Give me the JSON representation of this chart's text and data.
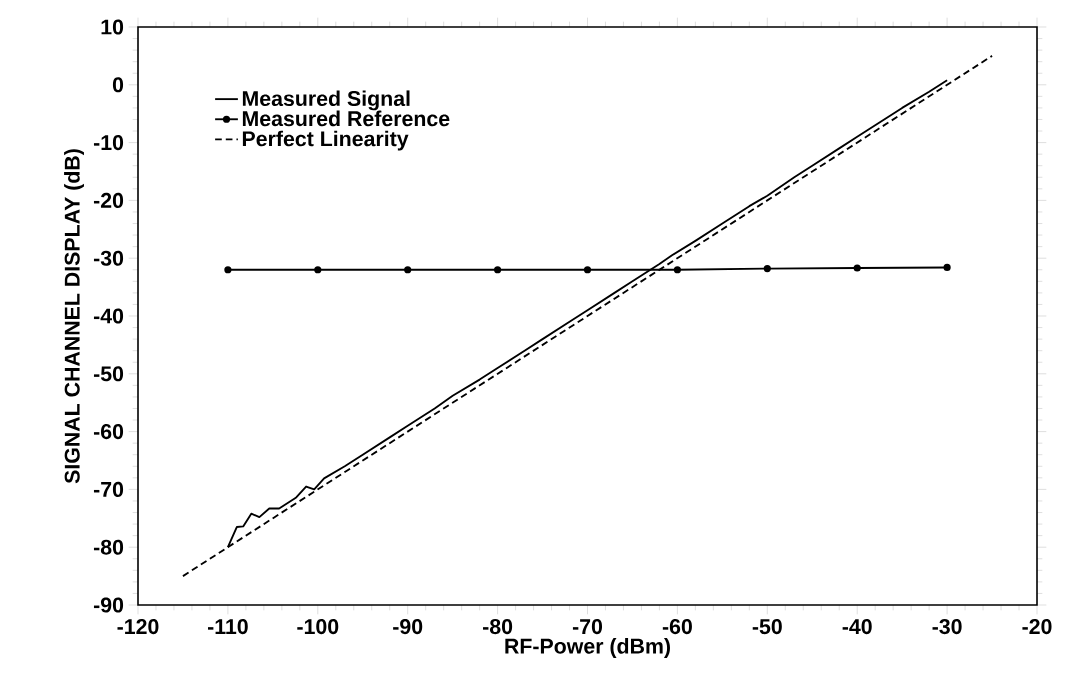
{
  "chart_data": {
    "type": "line",
    "xlabel": "RF-Power (dBm)",
    "ylabel": "SIGNAL CHANNEL DISPLAY (dB)",
    "xlim": [
      -120,
      -20
    ],
    "ylim": [
      -90,
      10
    ],
    "xticks": [
      -120,
      -110,
      -100,
      -90,
      -80,
      -70,
      -60,
      -50,
      -40,
      -30,
      -20
    ],
    "yticks": [
      -90,
      -80,
      -70,
      -60,
      -50,
      -40,
      -30,
      -20,
      -10,
      0,
      10
    ],
    "grid": false,
    "legend": "top left",
    "series": [
      {
        "name": "Measured Signal",
        "color": "#000000",
        "marker": "none",
        "line_style": "solid",
        "x": [
          -110,
          -109,
          -108.3,
          -107.4,
          -106.5,
          -105.4,
          -104.3,
          -102.4,
          -101.3,
          -100.4,
          -99.3,
          -97,
          -95,
          -92,
          -90,
          -87,
          -85,
          -82,
          -80,
          -77,
          -75,
          -72,
          -70,
          -67,
          -65,
          -62,
          -60.6,
          -58,
          -55,
          -52,
          -50,
          -47,
          -45,
          -42,
          -40,
          -37,
          -35,
          -32,
          -30
        ],
        "values": [
          -80,
          -76.5,
          -76.4,
          -74.2,
          -74.8,
          -73.3,
          -73.3,
          -71.4,
          -69.5,
          -70,
          -68.1,
          -66,
          -64,
          -61,
          -59,
          -56,
          -53.8,
          -51,
          -49,
          -46,
          -44,
          -41,
          -39,
          -36,
          -34,
          -31,
          -29.5,
          -27,
          -24,
          -21,
          -19.2,
          -16,
          -14,
          -11,
          -9,
          -6,
          -4,
          -1.2,
          0.8
        ]
      },
      {
        "name": "Measured Reference",
        "color": "#000000",
        "marker": "circle",
        "line_style": "solid",
        "x": [
          -110,
          -100,
          -90,
          -80,
          -70,
          -60,
          -50,
          -40,
          -30
        ],
        "values": [
          -32,
          -32,
          -32,
          -32,
          -32,
          -32,
          -31.8,
          -31.7,
          -31.6
        ]
      },
      {
        "name": "Perfect Linearity",
        "color": "#000000",
        "marker": "none",
        "line_style": "dashed",
        "x": [
          -115,
          -25
        ],
        "values": [
          -85,
          5
        ]
      }
    ]
  }
}
